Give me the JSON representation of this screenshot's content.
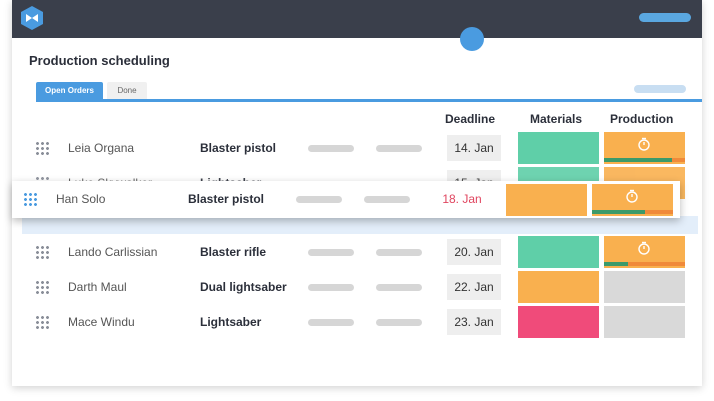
{
  "page_title": "Production scheduling",
  "tabs": [
    {
      "label": "Open Orders",
      "active": true
    },
    {
      "label": "Done",
      "active": false
    }
  ],
  "columns": {
    "deadline": "Deadline",
    "materials": "Materials",
    "production": "Production"
  },
  "colors": {
    "accent": "#4a9be0",
    "topbar": "#3a3f4b",
    "green": "#5fcfa8",
    "orange": "#f9b04f",
    "pink": "#f04b7a",
    "grey": "#d9d9d9",
    "overdue": "#e0455f"
  },
  "orders": [
    {
      "name": "Leia Organa",
      "product": "Blaster pistol",
      "deadline": "14. Jan",
      "materials": "green",
      "production": "orange",
      "progress": 0.8
    },
    {
      "name": "Luke Skywalker",
      "product": "Lightsaber",
      "deadline": "15. Jan",
      "materials": "green",
      "production": "orange",
      "progress": 0.8
    },
    {
      "name": "Lando Carlissian",
      "product": "Blaster rifle",
      "deadline": "20. Jan",
      "materials": "green",
      "production": "orange",
      "progress": 0.3
    },
    {
      "name": "Darth Maul",
      "product": "Dual lightsaber",
      "deadline": "22. Jan",
      "materials": "orange",
      "production": "grey",
      "progress": null
    },
    {
      "name": "Mace Windu",
      "product": "Lightsaber",
      "deadline": "23. Jan",
      "materials": "pink",
      "production": "grey",
      "progress": null
    }
  ],
  "dragged_order": {
    "name": "Han Solo",
    "product": "Blaster pistol",
    "deadline": "18. Jan",
    "materials": "orange",
    "production": "orange",
    "progress": 0.65
  },
  "icons": {
    "logo": "app-logo-icon",
    "drag": "drag-handle-icon",
    "timer": "stopwatch-icon"
  }
}
